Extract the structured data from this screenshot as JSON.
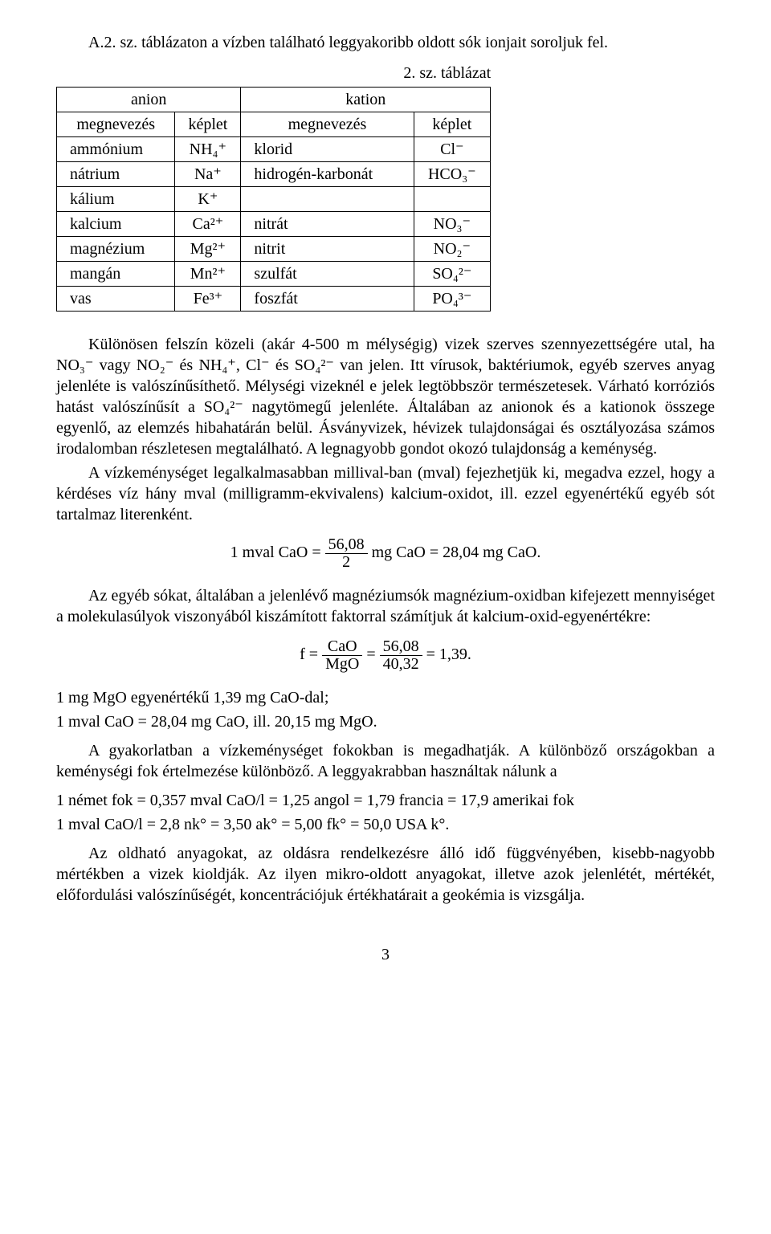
{
  "intro": "A.2. sz. táblázaton a vízben található leggyakoribb oldott sók ionjait soroljuk fel.",
  "table_caption": "2. sz. táblázat",
  "table": {
    "group_anion": "anion",
    "group_kation": "kation",
    "col_megnevezes": "megnevezés",
    "col_keplet": "képlet",
    "rows": [
      {
        "a_name": "ammónium",
        "a_form": "NH₄⁺",
        "k_name": "klorid",
        "k_form": "Cl⁻"
      },
      {
        "a_name": "nátrium",
        "a_form": "Na⁺",
        "k_name": "hidrogén-karbonát",
        "k_form": "HCO₃⁻"
      },
      {
        "a_name": "kálium",
        "a_form": "K⁺",
        "k_name": "",
        "k_form": ""
      },
      {
        "a_name": "kalcium",
        "a_form": "Ca²⁺",
        "k_name": "nitrát",
        "k_form": "NO₃⁻"
      },
      {
        "a_name": "magnézium",
        "a_form": "Mg²⁺",
        "k_name": "nitrit",
        "k_form": "NO₂⁻"
      },
      {
        "a_name": "mangán",
        "a_form": "Mn²⁺",
        "k_name": "szulfát",
        "k_form": "SO₄²⁻"
      },
      {
        "a_name": "vas",
        "a_form": "Fe³⁺",
        "k_name": "foszfát",
        "k_form": "PO₄³⁻"
      }
    ]
  },
  "p1": "Különösen felszín közeli (akár 4-500 m mélységig) vizek szerves szennyezettségére utal, ha NO₃⁻ vagy NO₂⁻ és NH₄⁺, Cl⁻ és SO₄²⁻ van jelen. Itt vírusok, baktériumok, egyéb szerves anyag jelenléte is valószínűsíthető. Mélységi vizeknél e jelek legtöbbször természetesek. Várható korróziós hatást valószínűsít a SO₄²⁻ nagytömegű jelenléte. Általában az anionok és a kationok összege egyenlő, az elemzés hibahatárán belül. Ásványvizek, hévizek tulajdonságai és osztályozása számos irodalomban részletesen megtalálható. A legnagyobb gondot okozó tulajdonság a keménység.",
  "p2": "A vízkeménységet legalkalmasabban millival-ban (mval) fejezhetjük ki, megadva ezzel, hogy a kérdéses víz hány mval (milligramm-ekvivalens) kalcium-oxidot, ill. ezzel egyenértékű egyéb sót tartalmaz literenként.",
  "eq1": {
    "lhs": "1 mval CaO =",
    "num": "56,08",
    "den": "2",
    "mid": " mg CaO = 28,04 mg CaO."
  },
  "p3": "Az egyéb sókat, általában a jelenlévő magnéziumsók magnézium-oxidban kifejezett mennyiséget a molekulasúlyok viszonyából kiszámított faktorral számítjuk át kalcium-oxid-egyenértékre:",
  "eq2": {
    "pre": "f =",
    "num1": "CaO",
    "den1": "MgO",
    "mid": " = ",
    "num2": "56,08",
    "den2": "40,32",
    "post": " = 1,39."
  },
  "p4a": "1 mg MgO egyenértékű 1,39 mg CaO-dal;",
  "p4b": "1 mval CaO = 28,04 mg CaO, ill. 20,15 mg MgO.",
  "p5": "A gyakorlatban a vízkeménységet fokokban is megadhatják. A különböző országokban a keménységi fok értelmezése különböző. A leggyakrabban használtak nálunk a",
  "p6a": "1 német fok = 0,357 mval  CaO/l = 1,25 angol = 1,79 francia = 17,9 amerikai fok",
  "p6b": "1 mval CaO/l = 2,8 nk° = 3,50 ak° = 5,00 fk° = 50,0 USA k°.",
  "p7": "Az oldható anyagokat, az oldásra rendelkezésre álló idő függvényében, kisebb-nagyobb mértékben a vizek kioldják. Az ilyen mikro-oldott anyagokat, illetve azok jelenlétét, mértékét, előfordulási valószínűségét, koncentrációjuk értékhatárait a geokémia is vizsgálja.",
  "pagenum": "3"
}
